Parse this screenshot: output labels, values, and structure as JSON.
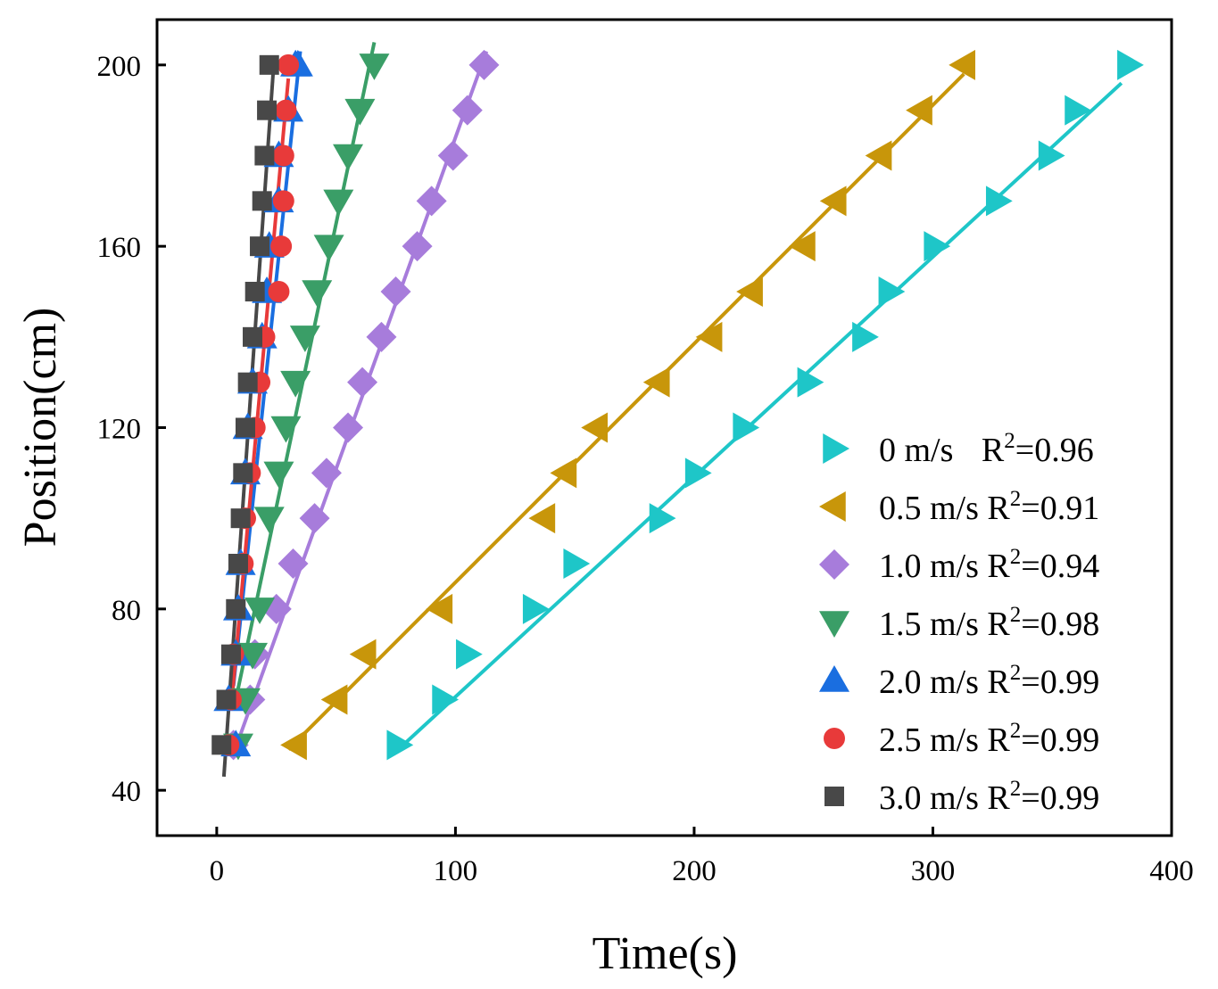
{
  "chart_data": {
    "type": "scatter",
    "title": "",
    "xlabel": "Time(s)",
    "ylabel": "Position(cm)",
    "xlim": [
      -25,
      400
    ],
    "ylim": [
      30,
      210
    ],
    "xticks": [
      0,
      100,
      200,
      300,
      400
    ],
    "yticks": [
      40,
      80,
      120,
      160,
      200
    ],
    "legend_position": "bottom-right",
    "grid": false,
    "series": [
      {
        "name": "0 m/s",
        "r2_label": "R",
        "r2_value": "=0.96",
        "color": "#1ec6c8",
        "marker": "triangle-right",
        "x": [
          76,
          95,
          105,
          133,
          150,
          186,
          201,
          221,
          248,
          271,
          282,
          301,
          327,
          349,
          360,
          382
        ],
        "y": [
          50,
          60,
          70,
          80,
          90,
          100,
          110,
          120,
          130,
          140,
          150,
          160,
          170,
          180,
          190,
          200
        ],
        "fit": {
          "x": [
            74,
            379
          ],
          "y": [
            48,
            196
          ]
        }
      },
      {
        "name": "0.5 m/s",
        "r2_label": "R",
        "r2_value": "=0.91",
        "color": "#c8960a",
        "marker": "triangle-left",
        "x": [
          33,
          50,
          62,
          94,
          137,
          146,
          159,
          185,
          207,
          224,
          246,
          259,
          278,
          295,
          313
        ],
        "y": [
          50,
          60,
          70,
          80,
          100,
          110,
          120,
          130,
          140,
          150,
          160,
          170,
          180,
          190,
          200
        ],
        "fit": {
          "x": [
            30,
            313
          ],
          "y": [
            49,
            198
          ]
        }
      },
      {
        "name": "1.0 m/s",
        "r2_label": "R",
        "r2_value": "=0.94",
        "color": "#a77cdb",
        "marker": "diamond",
        "x": [
          7,
          14,
          16,
          25,
          32,
          41,
          46,
          55,
          61,
          69,
          75,
          84,
          90,
          99,
          105,
          112
        ],
        "y": [
          50,
          60,
          70,
          80,
          90,
          100,
          110,
          120,
          130,
          140,
          150,
          160,
          170,
          180,
          190,
          200
        ],
        "fit": {
          "x": [
            7,
            113
          ],
          "y": [
            48,
            203
          ]
        }
      },
      {
        "name": "1.5 m/s",
        "r2_label": "R",
        "r2_value": "=0.98",
        "color": "#3a9e67",
        "marker": "triangle-down",
        "x": [
          9,
          12,
          15,
          18,
          22,
          26,
          29,
          33,
          37,
          42,
          47,
          51,
          55,
          60,
          66
        ],
        "y": [
          50,
          60,
          70,
          80,
          100,
          110,
          120,
          130,
          140,
          150,
          160,
          170,
          180,
          190,
          200
        ],
        "fit": {
          "x": [
            8,
            66
          ],
          "y": [
            60,
            205
          ]
        }
      },
      {
        "name": "2.0 m/s",
        "r2_label": "R",
        "r2_value": "=0.99",
        "color": "#1a6ee0",
        "marker": "triangle-up",
        "x": [
          8,
          5,
          8,
          9,
          10,
          12,
          13,
          15,
          19,
          21,
          22,
          26,
          26,
          30,
          33,
          33,
          34
        ],
        "y": [
          50,
          60,
          70,
          80,
          90,
          110,
          120,
          130,
          140,
          150,
          160,
          170,
          180,
          190,
          200,
          200,
          200
        ],
        "fit": {
          "x": [
            7,
            35
          ],
          "y": [
            63,
            203
          ]
        }
      },
      {
        "name": "2.5 m/s",
        "r2_label": "R",
        "r2_value": "=0.99",
        "color": "#e83a3a",
        "marker": "circle",
        "x": [
          5,
          6,
          7,
          11,
          12,
          14,
          16,
          18,
          20,
          20,
          26,
          27,
          28,
          28,
          29,
          30
        ],
        "y": [
          50,
          60,
          70,
          90,
          100,
          110,
          120,
          130,
          140,
          140,
          150,
          160,
          170,
          180,
          190,
          200
        ],
        "fit": {
          "x": [
            6,
            30
          ],
          "y": [
            58,
            197
          ]
        }
      },
      {
        "name": "3.0 m/s",
        "r2_label": "R",
        "r2_value": "=0.99",
        "color": "#484848",
        "marker": "square",
        "x": [
          2,
          4,
          6,
          8,
          9,
          10,
          11,
          12,
          13,
          15,
          16,
          18,
          19,
          20,
          21,
          22
        ],
        "y": [
          50,
          60,
          70,
          80,
          90,
          100,
          110,
          120,
          130,
          140,
          150,
          160,
          170,
          180,
          190,
          200
        ],
        "fit": {
          "x": [
            3,
            24
          ],
          "y": [
            43,
            201
          ]
        }
      }
    ]
  }
}
